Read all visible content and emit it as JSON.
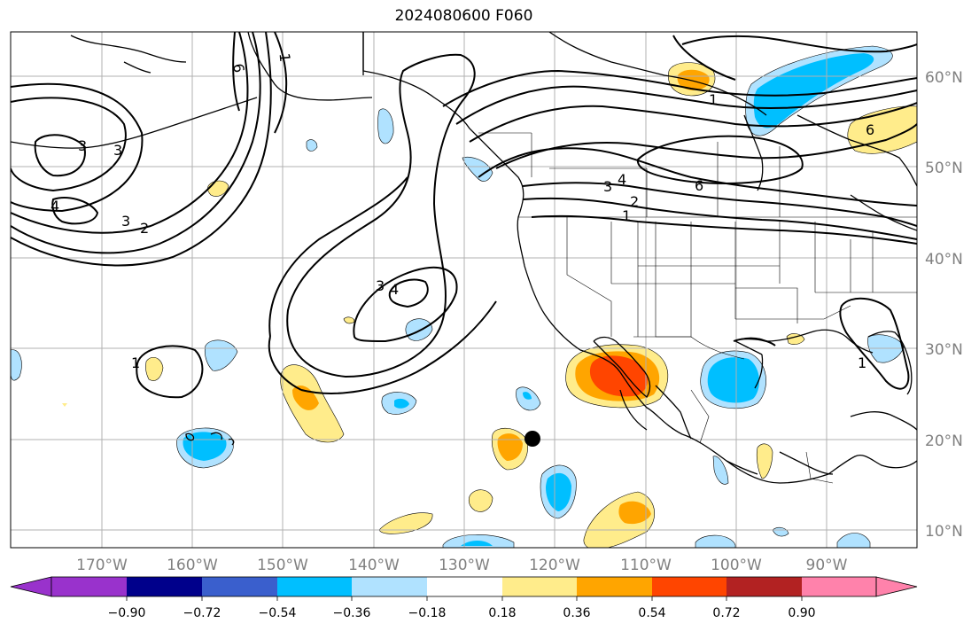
{
  "title": "2024080600 F060",
  "map": {
    "lat_labels": [
      "60°N",
      "50°N",
      "40°N",
      "30°N",
      "20°N",
      "10°N"
    ],
    "lon_labels": [
      "170°W",
      "160°W",
      "150°W",
      "140°W",
      "130°W",
      "120°W",
      "110°W",
      "100°W",
      "90°W"
    ],
    "contour_labels": [
      "6",
      "1",
      "3",
      "3",
      "2",
      "3",
      "4",
      "3",
      "4",
      "1",
      "1",
      "4",
      "3",
      "2",
      "1",
      "6",
      "6",
      "1"
    ],
    "marker": "black-dot"
  },
  "colorbar": {
    "tick_labels": [
      "−0.90",
      "−0.72",
      "−0.54",
      "−0.36",
      "−0.18",
      "0.18",
      "0.36",
      "0.54",
      "0.72",
      "0.90"
    ],
    "colors": [
      "#9932cc",
      "#00008b",
      "#3a5fcd",
      "#00bfff",
      "#b0e2ff",
      "#ffffff",
      "#ffec8b",
      "#ffa500",
      "#ff4500",
      "#b22222",
      "#ff82ab"
    ],
    "extend": "both"
  },
  "colors": {
    "grid": "#b0b0b0",
    "coast": "#000000",
    "contour": "#000000",
    "label_gray": "#808080"
  }
}
